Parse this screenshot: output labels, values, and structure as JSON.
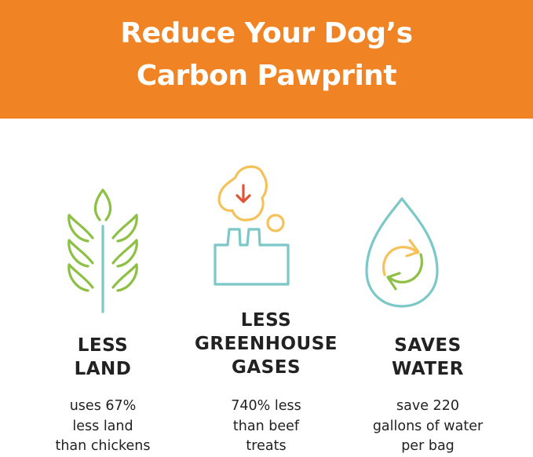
{
  "header": {
    "title_line1": "Reduce Your Dog’s",
    "title_line2": "Carbon Pawprint",
    "background": "#F08424"
  },
  "columns": [
    {
      "icon": "wheat-plant-icon",
      "heading": [
        "LESS",
        "LAND"
      ],
      "description": [
        "uses 67%",
        "less land",
        "than chickens"
      ]
    },
    {
      "icon": "factory-emissions-icon",
      "heading": [
        "LESS",
        "GREENHOUSE",
        "GASES"
      ],
      "description": [
        "740% less",
        "than beef",
        "treats"
      ]
    },
    {
      "icon": "water-drop-recycle-icon",
      "heading": [
        "SAVES",
        "WATER"
      ],
      "description": [
        "save 220",
        "gallons of water",
        "per bag"
      ]
    }
  ],
  "colors": {
    "green": "#8DC044",
    "teal": "#7CC8C8",
    "yellow": "#F5C25A",
    "red": "#E0553A"
  }
}
